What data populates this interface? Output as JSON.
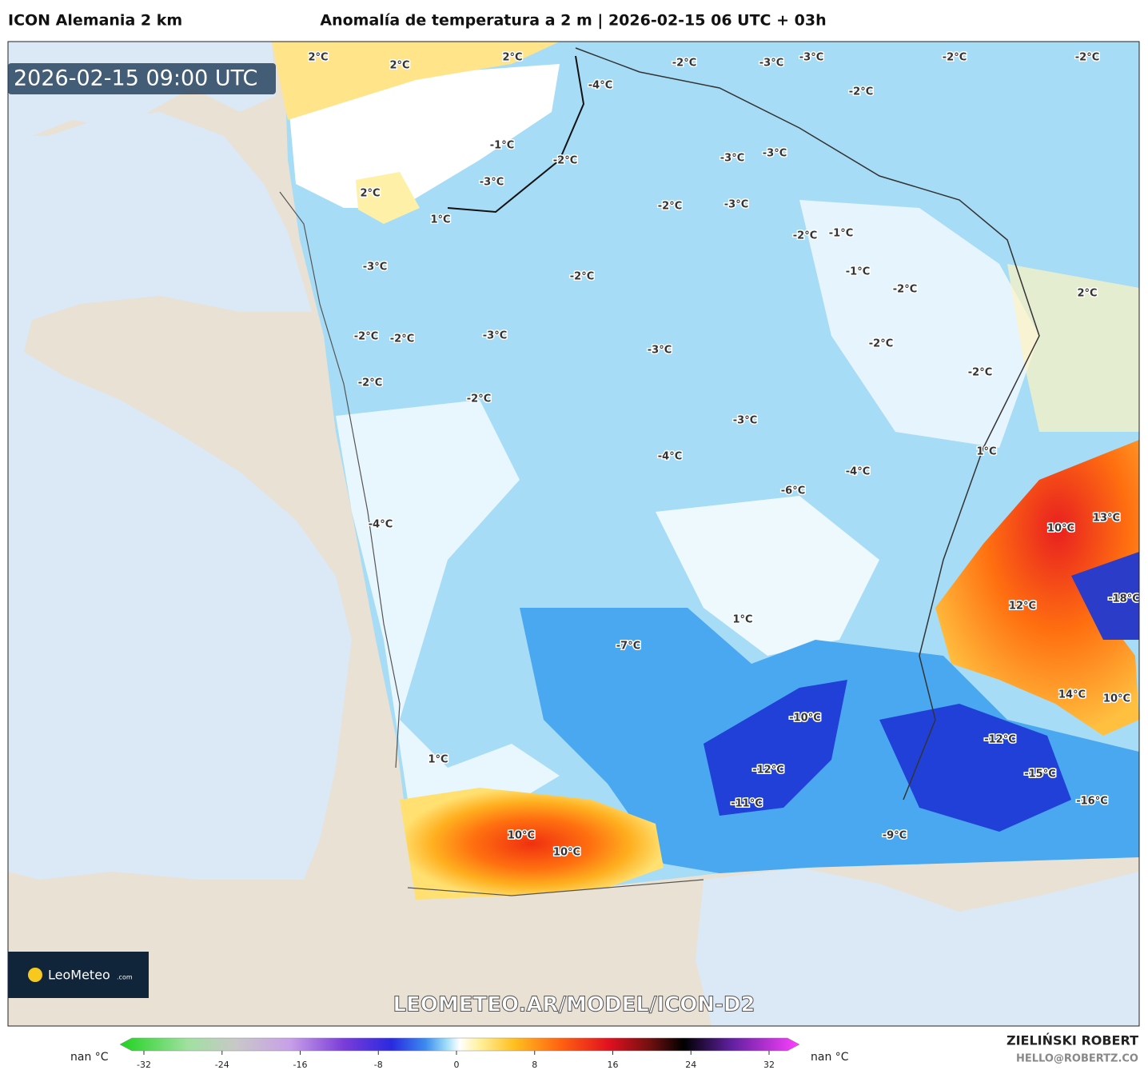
{
  "header": {
    "model": "ICON Alemania 2 km",
    "title": "Anomalía de temperatura a 2 m | 2026-02-15 06 UTC + 03h"
  },
  "map": {
    "timestamp": "2026-02-15 09:00 UTC",
    "watermark": "LEOMETEO.AR/MODEL/ICON-D2",
    "labels": [
      "2°C",
      "2°C",
      "2°C",
      "-2°C",
      "-3°C",
      "-3°C",
      "-2°C",
      "-2°C",
      "-4°C",
      "-2°C",
      "-1°C",
      "2°C",
      "1°C",
      "-3°C",
      "-2°C",
      "-3°C",
      "-3°C",
      "-2°C",
      "-3°C",
      "-2°C",
      "-1°C",
      "-3°C",
      "-2°C",
      "-1°C",
      "-2°C",
      "2°C",
      "-2°C",
      "-2°C",
      "-3°C",
      "-3°C",
      "-2°C",
      "-2°C",
      "-2°C",
      "-2°C",
      "-3°C",
      "-4°C",
      "-4°C",
      "-6°C",
      "-4°C",
      "1°C",
      "10°C",
      "13°C",
      "10°C",
      "10°C",
      "-10°C",
      "-12°C",
      "-12°C",
      "-15°C",
      "-16°C",
      "-18°C",
      "14°C",
      "10°C",
      "12°C",
      "1°C",
      "1°C",
      "-7°C",
      "-11°C",
      "-9°C"
    ]
  },
  "logo": {
    "name": "LeoMeteo",
    "suffix": ".com"
  },
  "colorbar": {
    "left_label": "nan °C",
    "right_label": "nan °C",
    "ticks": [
      -32,
      -24,
      -16,
      -8,
      0,
      8,
      16,
      24,
      32
    ]
  },
  "footer": {
    "author": "ZIELIŃSKI ROBERT",
    "email": "HELLO@ROBERTZ.CO"
  }
}
